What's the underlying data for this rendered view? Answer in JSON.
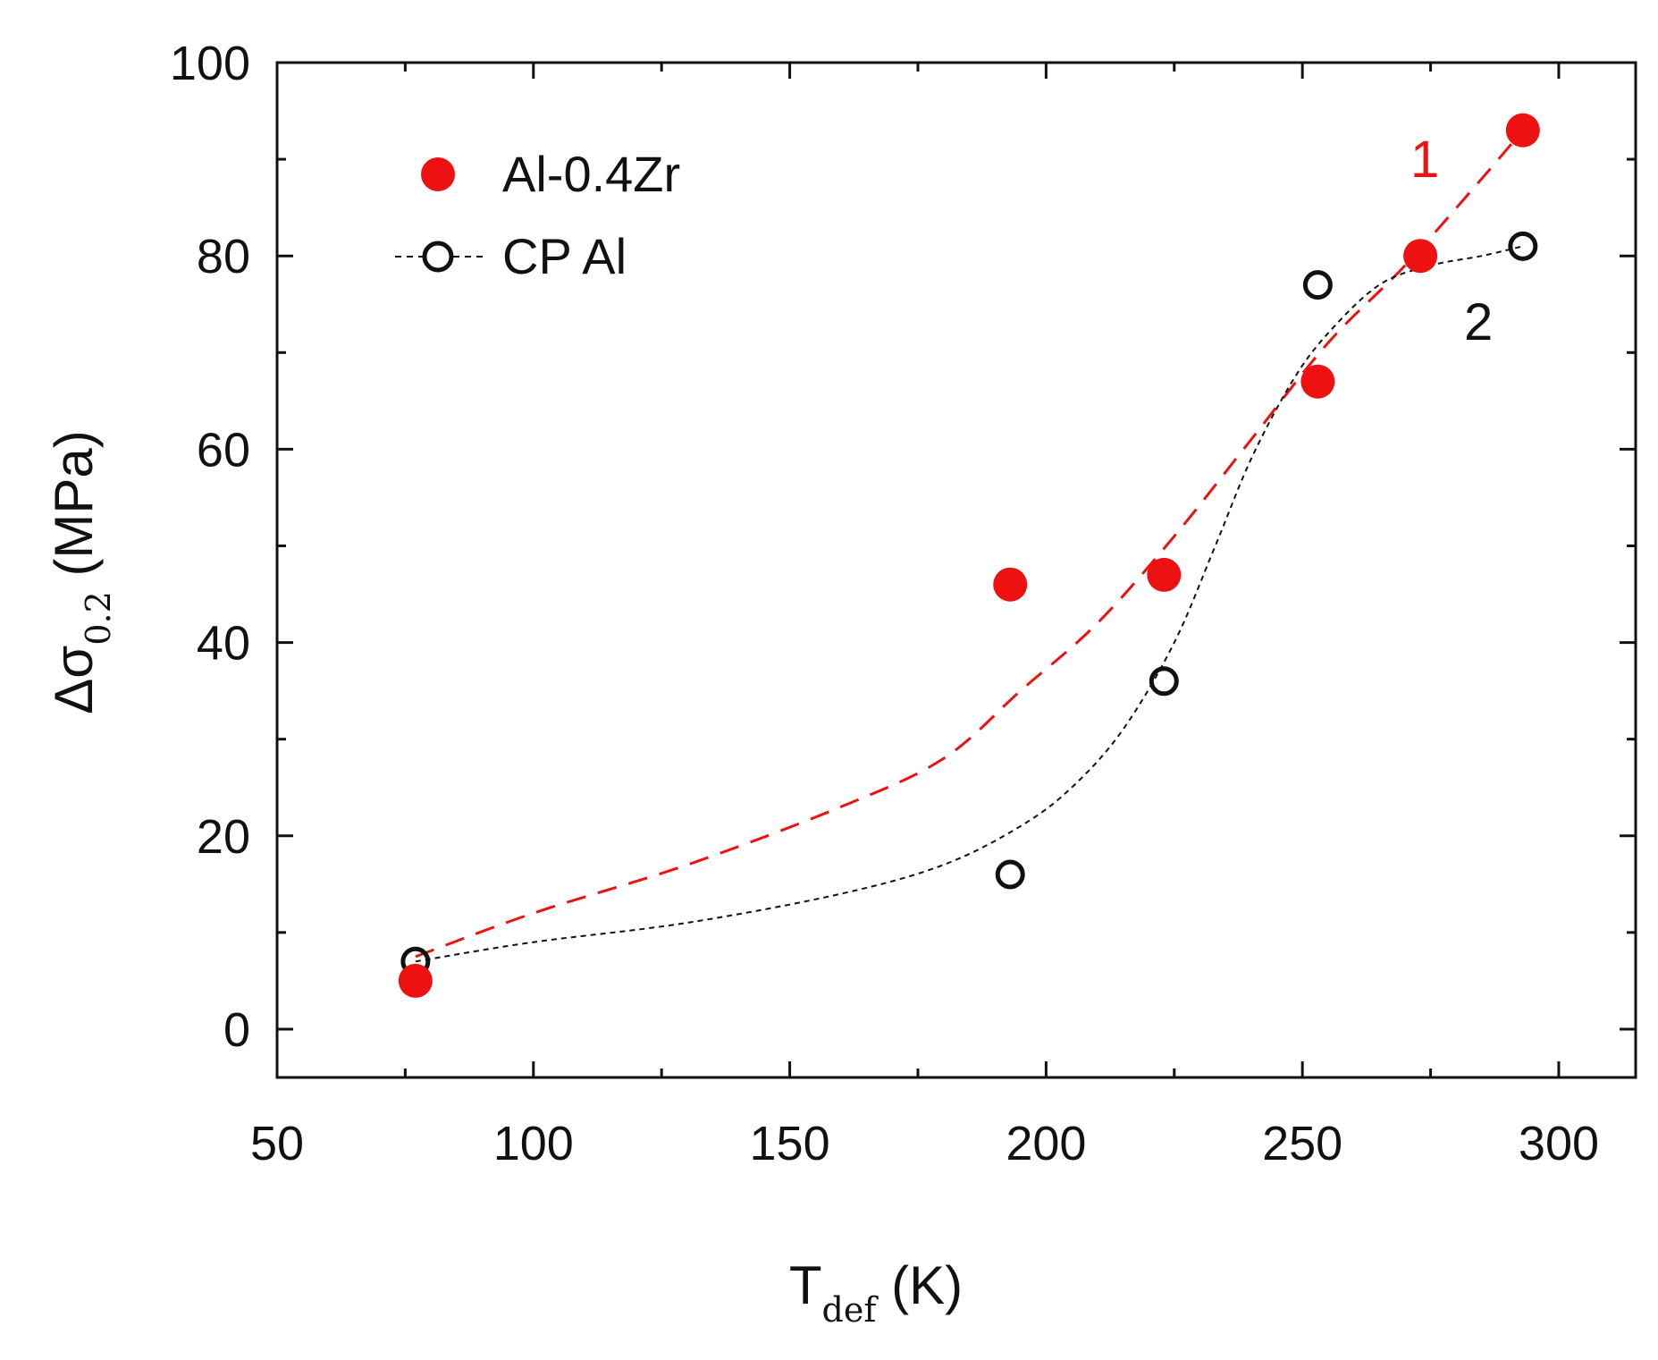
{
  "chart_data": {
    "type": "scatter",
    "title": "",
    "xlabel": {
      "main": "T",
      "sub": "def",
      "unit": " (K)"
    },
    "ylabel": {
      "prefix": "Δσ",
      "sub": "0.2",
      "unit": " (MPa)"
    },
    "xlim": [
      50,
      315
    ],
    "ylim": [
      -5,
      100
    ],
    "xticks": [
      50,
      100,
      150,
      200,
      250,
      300
    ],
    "yticks": [
      0,
      20,
      40,
      60,
      80,
      100
    ],
    "xminor": [
      75,
      125,
      175,
      225,
      275
    ],
    "yminor": [
      10,
      30,
      50,
      70,
      90
    ],
    "legend_position": "top-left",
    "series": [
      {
        "name": "Al-0.4Zr",
        "marker": "filled-circle",
        "color": "#ee1111",
        "x": [
          77,
          193,
          223,
          253,
          273,
          293
        ],
        "y": [
          5,
          46,
          47,
          67,
          80,
          93
        ],
        "fit_label": "1",
        "fit_style": "dashed",
        "fit_x": [
          77,
          100,
          130,
          160,
          180,
          195,
          210,
          225,
          240,
          255,
          270,
          285,
          293
        ],
        "fit_y": [
          7.5,
          12,
          17,
          23,
          28,
          35,
          42,
          51,
          61,
          71,
          79,
          88,
          93
        ]
      },
      {
        "name": "CP Al",
        "marker": "open-circle",
        "color": "#111111",
        "x": [
          77,
          193,
          223,
          253,
          293
        ],
        "y": [
          7,
          16,
          36,
          77,
          81
        ],
        "fit_label": "2",
        "fit_style": "dotted",
        "fit_x": [
          77,
          100,
          130,
          160,
          180,
          195,
          205,
          215,
          225,
          233,
          240,
          248,
          255,
          265,
          275,
          285,
          293
        ],
        "fit_y": [
          7,
          9,
          11,
          14,
          17,
          21,
          25,
          31,
          40,
          50,
          59,
          67,
          72,
          77,
          79,
          80,
          81
        ]
      }
    ]
  }
}
